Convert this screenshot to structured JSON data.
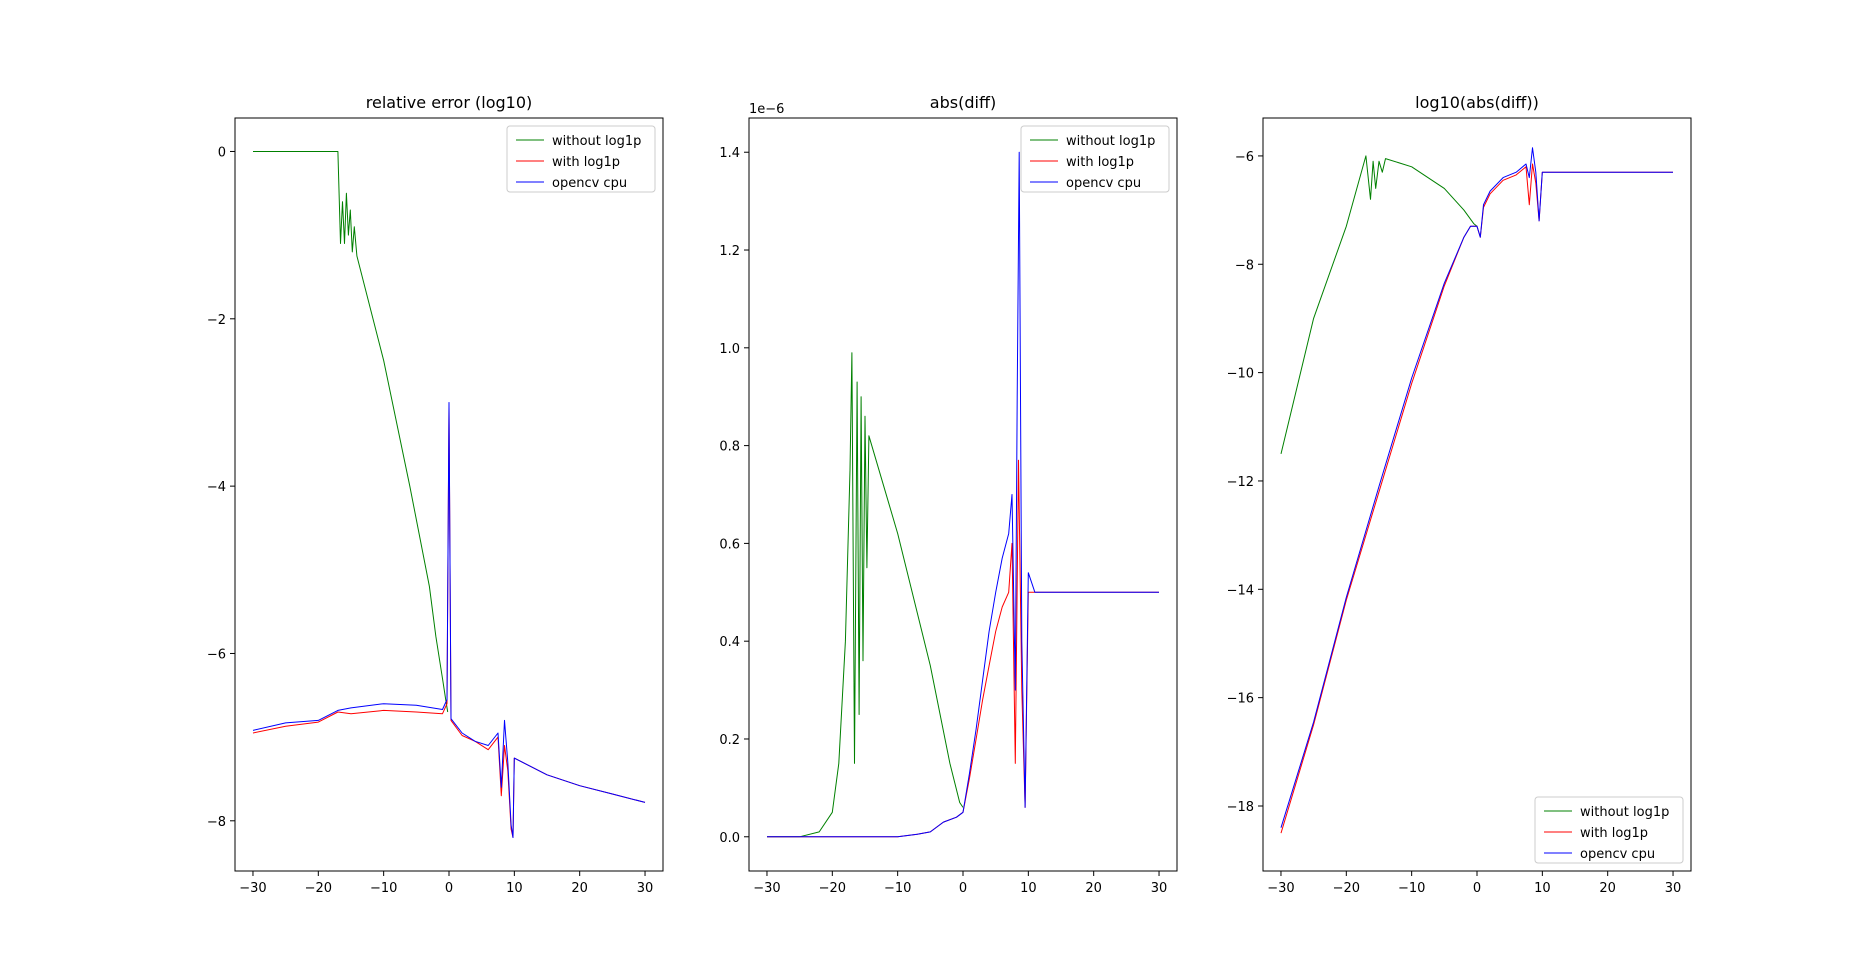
{
  "colors": {
    "without": "#008000",
    "with": "#ff0000",
    "cpu": "#0000ff"
  },
  "chart_data": [
    {
      "type": "line",
      "title": "relative error (log10)",
      "xlim": [
        -32.75,
        32.75
      ],
      "ylim": [
        -8.6,
        0.4
      ],
      "xticks": [
        -30,
        -20,
        -10,
        0,
        10,
        20,
        30
      ],
      "yticks": [
        0,
        -2,
        -4,
        -6,
        -8
      ],
      "legend": "top-right",
      "offset_text": "",
      "series": [
        {
          "name": "without log1p",
          "color": "#008000",
          "points": [
            [
              -30,
              0
            ],
            [
              -17,
              0
            ],
            [
              -16.6,
              -1.1
            ],
            [
              -16.3,
              -0.6
            ],
            [
              -16,
              -1.1
            ],
            [
              -15.7,
              -0.5
            ],
            [
              -15.4,
              -1.0
            ],
            [
              -15.1,
              -0.7
            ],
            [
              -14.8,
              -1.2
            ],
            [
              -14.5,
              -0.9
            ],
            [
              -14.1,
              -1.25
            ],
            [
              -10,
              -2.5
            ],
            [
              -6,
              -4.0
            ],
            [
              -3,
              -5.2
            ],
            [
              -2,
              -5.8
            ],
            [
              -1,
              -6.3
            ],
            [
              -0.5,
              -6.55
            ],
            [
              -0.2,
              -6.7
            ]
          ]
        },
        {
          "name": "with log1p",
          "color": "#ff0000",
          "points": [
            [
              -30,
              -6.95
            ],
            [
              -25,
              -6.87
            ],
            [
              -20,
              -6.82
            ],
            [
              -17,
              -6.7
            ],
            [
              -15,
              -6.72
            ],
            [
              -10,
              -6.68
            ],
            [
              -5,
              -6.7
            ],
            [
              -1,
              -6.72
            ],
            [
              -0.3,
              -6.6
            ],
            [
              0,
              -3.05
            ],
            [
              0.3,
              -6.8
            ],
            [
              2,
              -6.98
            ],
            [
              4,
              -7.05
            ],
            [
              6,
              -7.15
            ],
            [
              7.5,
              -7.0
            ],
            [
              8,
              -7.7
            ],
            [
              8.5,
              -7.1
            ],
            [
              9,
              -7.4
            ],
            [
              9.5,
              -8.1
            ],
            [
              9.8,
              -8.2
            ],
            [
              10,
              -7.25
            ],
            [
              15,
              -7.45
            ],
            [
              20,
              -7.58
            ],
            [
              25,
              -7.68
            ],
            [
              30,
              -7.78
            ]
          ]
        },
        {
          "name": "opencv cpu",
          "color": "#0000ff",
          "points": [
            [
              -30,
              -6.92
            ],
            [
              -25,
              -6.83
            ],
            [
              -20,
              -6.8
            ],
            [
              -17,
              -6.68
            ],
            [
              -15,
              -6.65
            ],
            [
              -10,
              -6.6
            ],
            [
              -5,
              -6.62
            ],
            [
              -1,
              -6.67
            ],
            [
              -0.3,
              -6.55
            ],
            [
              0,
              -3.0
            ],
            [
              0.3,
              -6.78
            ],
            [
              2,
              -6.95
            ],
            [
              4,
              -7.05
            ],
            [
              6,
              -7.1
            ],
            [
              7.5,
              -6.95
            ],
            [
              8,
              -7.6
            ],
            [
              8.5,
              -6.8
            ],
            [
              9,
              -7.3
            ],
            [
              9.5,
              -8.05
            ],
            [
              9.8,
              -8.2
            ],
            [
              10,
              -7.25
            ],
            [
              15,
              -7.45
            ],
            [
              20,
              -7.58
            ],
            [
              25,
              -7.68
            ],
            [
              30,
              -7.78
            ]
          ]
        }
      ]
    },
    {
      "type": "line",
      "title": "abs(diff)",
      "xlim": [
        -32.75,
        32.75
      ],
      "ylim": [
        -0.07,
        1.47
      ],
      "xticks": [
        -30,
        -20,
        -10,
        0,
        10,
        20,
        30
      ],
      "yticks": [
        0.0,
        0.2,
        0.4,
        0.6,
        0.8,
        1.0,
        1.2,
        1.4
      ],
      "legend": "top-right",
      "offset_text": "1e−6",
      "series": [
        {
          "name": "without log1p",
          "color": "#008000",
          "points": [
            [
              -30,
              0
            ],
            [
              -25,
              0
            ],
            [
              -22,
              0.01
            ],
            [
              -20,
              0.05
            ],
            [
              -19,
              0.15
            ],
            [
              -18,
              0.4
            ],
            [
              -17.3,
              0.75
            ],
            [
              -17,
              0.99
            ],
            [
              -16.6,
              0.15
            ],
            [
              -16.2,
              0.93
            ],
            [
              -15.9,
              0.25
            ],
            [
              -15.6,
              0.9
            ],
            [
              -15.3,
              0.36
            ],
            [
              -15,
              0.86
            ],
            [
              -14.7,
              0.55
            ],
            [
              -14.4,
              0.82
            ],
            [
              -10,
              0.62
            ],
            [
              -5,
              0.35
            ],
            [
              -2,
              0.15
            ],
            [
              -0.5,
              0.07
            ],
            [
              0,
              0.06
            ]
          ]
        },
        {
          "name": "with log1p",
          "color": "#ff0000",
          "points": [
            [
              -30,
              0
            ],
            [
              -10,
              0
            ],
            [
              -7,
              0.005
            ],
            [
              -5,
              0.01
            ],
            [
              -3,
              0.03
            ],
            [
              -1,
              0.04
            ],
            [
              0,
              0.05
            ],
            [
              1,
              0.12
            ],
            [
              2,
              0.2
            ],
            [
              3,
              0.28
            ],
            [
              4,
              0.35
            ],
            [
              5,
              0.42
            ],
            [
              6,
              0.47
            ],
            [
              7,
              0.5
            ],
            [
              7.5,
              0.6
            ],
            [
              8,
              0.15
            ],
            [
              8.5,
              0.77
            ],
            [
              9,
              0.3
            ],
            [
              9.5,
              0.06
            ],
            [
              10,
              0.5
            ],
            [
              12,
              0.5
            ],
            [
              20,
              0.5
            ],
            [
              30,
              0.5
            ]
          ]
        },
        {
          "name": "opencv cpu",
          "color": "#0000ff",
          "points": [
            [
              -30,
              0
            ],
            [
              -10,
              0
            ],
            [
              -7,
              0.005
            ],
            [
              -5,
              0.01
            ],
            [
              -3,
              0.03
            ],
            [
              -1,
              0.04
            ],
            [
              0,
              0.05
            ],
            [
              1,
              0.13
            ],
            [
              2,
              0.22
            ],
            [
              3,
              0.32
            ],
            [
              4,
              0.42
            ],
            [
              5,
              0.5
            ],
            [
              6,
              0.57
            ],
            [
              7,
              0.62
            ],
            [
              7.5,
              0.7
            ],
            [
              8,
              0.3
            ],
            [
              8.3,
              0.9
            ],
            [
              8.6,
              1.4
            ],
            [
              9,
              0.4
            ],
            [
              9.5,
              0.06
            ],
            [
              10,
              0.54
            ],
            [
              11,
              0.5
            ],
            [
              20,
              0.5
            ],
            [
              30,
              0.5
            ]
          ]
        }
      ]
    },
    {
      "type": "line",
      "title": "log10(abs(diff))",
      "xlim": [
        -32.75,
        32.75
      ],
      "ylim": [
        -19.2,
        -5.3
      ],
      "xticks": [
        -30,
        -20,
        -10,
        0,
        10,
        20,
        30
      ],
      "yticks": [
        -6,
        -8,
        -10,
        -12,
        -14,
        -16,
        -18
      ],
      "legend": "bottom-right",
      "offset_text": "",
      "series": [
        {
          "name": "without log1p",
          "color": "#008000",
          "points": [
            [
              -30,
              -11.5
            ],
            [
              -25,
              -9.0
            ],
            [
              -20,
              -7.3
            ],
            [
              -17,
              -6.0
            ],
            [
              -16.3,
              -6.8
            ],
            [
              -15.9,
              -6.1
            ],
            [
              -15.5,
              -6.6
            ],
            [
              -15,
              -6.1
            ],
            [
              -14.5,
              -6.3
            ],
            [
              -14,
              -6.05
            ],
            [
              -10,
              -6.2
            ],
            [
              -5,
              -6.6
            ],
            [
              -2,
              -7.0
            ],
            [
              -0.5,
              -7.25
            ],
            [
              0,
              -7.3
            ]
          ]
        },
        {
          "name": "with log1p",
          "color": "#ff0000",
          "points": [
            [
              -30,
              -18.5
            ],
            [
              -25,
              -16.5
            ],
            [
              -20,
              -14.2
            ],
            [
              -15,
              -12.2
            ],
            [
              -10,
              -10.2
            ],
            [
              -5,
              -8.4
            ],
            [
              -2,
              -7.5
            ],
            [
              -1,
              -7.3
            ],
            [
              0,
              -7.3
            ],
            [
              0.5,
              -7.5
            ],
            [
              1,
              -6.95
            ],
            [
              2,
              -6.7
            ],
            [
              4,
              -6.45
            ],
            [
              6,
              -6.35
            ],
            [
              7.5,
              -6.2
            ],
            [
              8,
              -6.9
            ],
            [
              8.5,
              -6.15
            ],
            [
              9,
              -6.5
            ],
            [
              9.5,
              -7.2
            ],
            [
              10,
              -6.3
            ],
            [
              12,
              -6.3
            ],
            [
              20,
              -6.3
            ],
            [
              30,
              -6.3
            ]
          ]
        },
        {
          "name": "opencv cpu",
          "color": "#0000ff",
          "points": [
            [
              -30,
              -18.4
            ],
            [
              -25,
              -16.45
            ],
            [
              -20,
              -14.15
            ],
            [
              -15,
              -12.1
            ],
            [
              -10,
              -10.1
            ],
            [
              -5,
              -8.35
            ],
            [
              -2,
              -7.5
            ],
            [
              -1,
              -7.3
            ],
            [
              0,
              -7.3
            ],
            [
              0.5,
              -7.5
            ],
            [
              1,
              -6.9
            ],
            [
              2,
              -6.65
            ],
            [
              4,
              -6.4
            ],
            [
              6,
              -6.3
            ],
            [
              7.5,
              -6.15
            ],
            [
              8,
              -6.4
            ],
            [
              8.5,
              -5.85
            ],
            [
              9,
              -6.3
            ],
            [
              9.5,
              -7.2
            ],
            [
              10,
              -6.3
            ],
            [
              12,
              -6.3
            ],
            [
              20,
              -6.3
            ],
            [
              30,
              -6.3
            ]
          ]
        }
      ]
    }
  ]
}
